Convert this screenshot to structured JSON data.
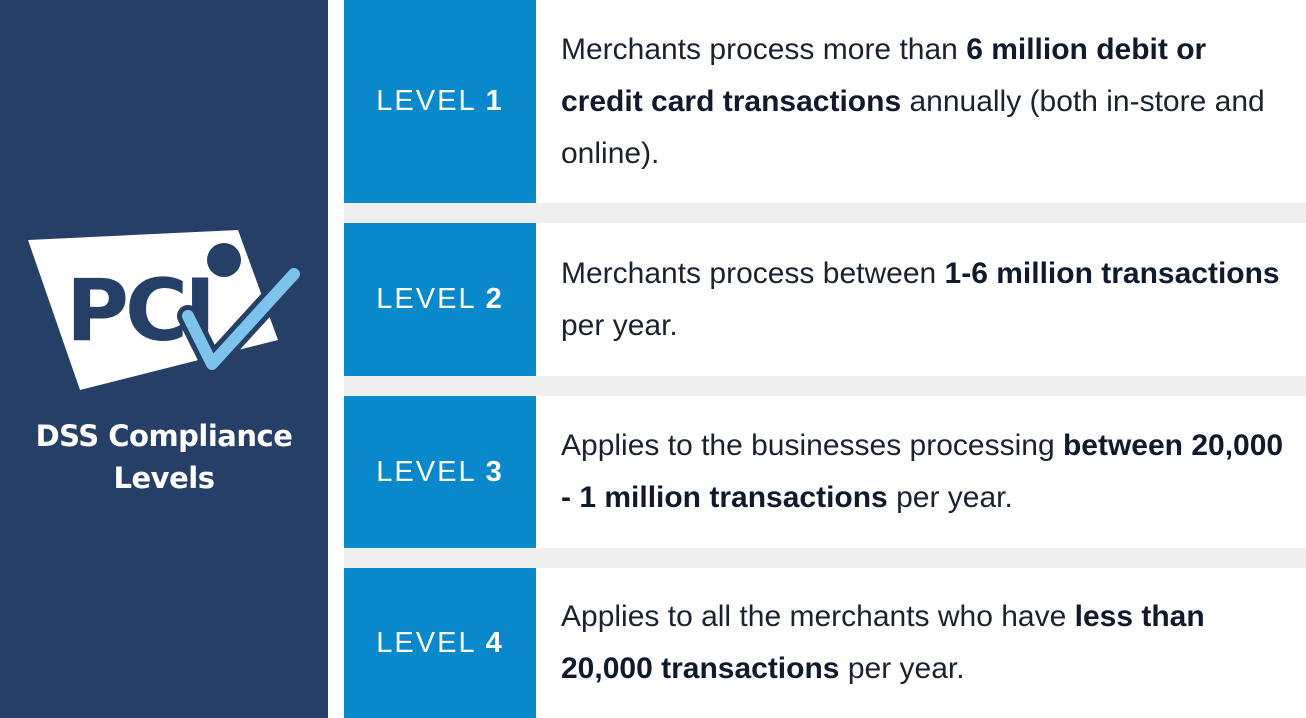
{
  "sidebar": {
    "logo_text": "PCI",
    "subtitle_line1": "DSS Compliance",
    "subtitle_line2": "Levels",
    "colors": {
      "panel": "#263f67",
      "check": "#7ec3ec",
      "logo_fill": "#ffffff"
    }
  },
  "levels": [
    {
      "label": "LEVEL",
      "number": "1",
      "text_a": "Merchants process more than ",
      "bold_a": "6 million debit or credit card transactions",
      "text_b": " annually (both in-store and online).",
      "bold_b": "",
      "text_c": ""
    },
    {
      "label": "LEVEL",
      "number": "2",
      "text_a": "Merchants process between ",
      "bold_a": "1-6 million transactions",
      "text_b": " per year.",
      "bold_b": "",
      "text_c": ""
    },
    {
      "label": "LEVEL",
      "number": "3",
      "text_a": "Applies to the businesses processing ",
      "bold_a": "between 20,000 - 1 million transactions",
      "text_b": " per year.",
      "bold_b": "",
      "text_c": ""
    },
    {
      "label": "LEVEL",
      "number": "4",
      "text_a": "Applies to all the merchants who have ",
      "bold_a": "less than 20,000 transactions",
      "text_b": " per year.",
      "bold_b": "",
      "text_c": ""
    }
  ],
  "colors": {
    "level_box": "#0a88cc",
    "row_gap": "#efefef",
    "text": "#1a2230"
  }
}
